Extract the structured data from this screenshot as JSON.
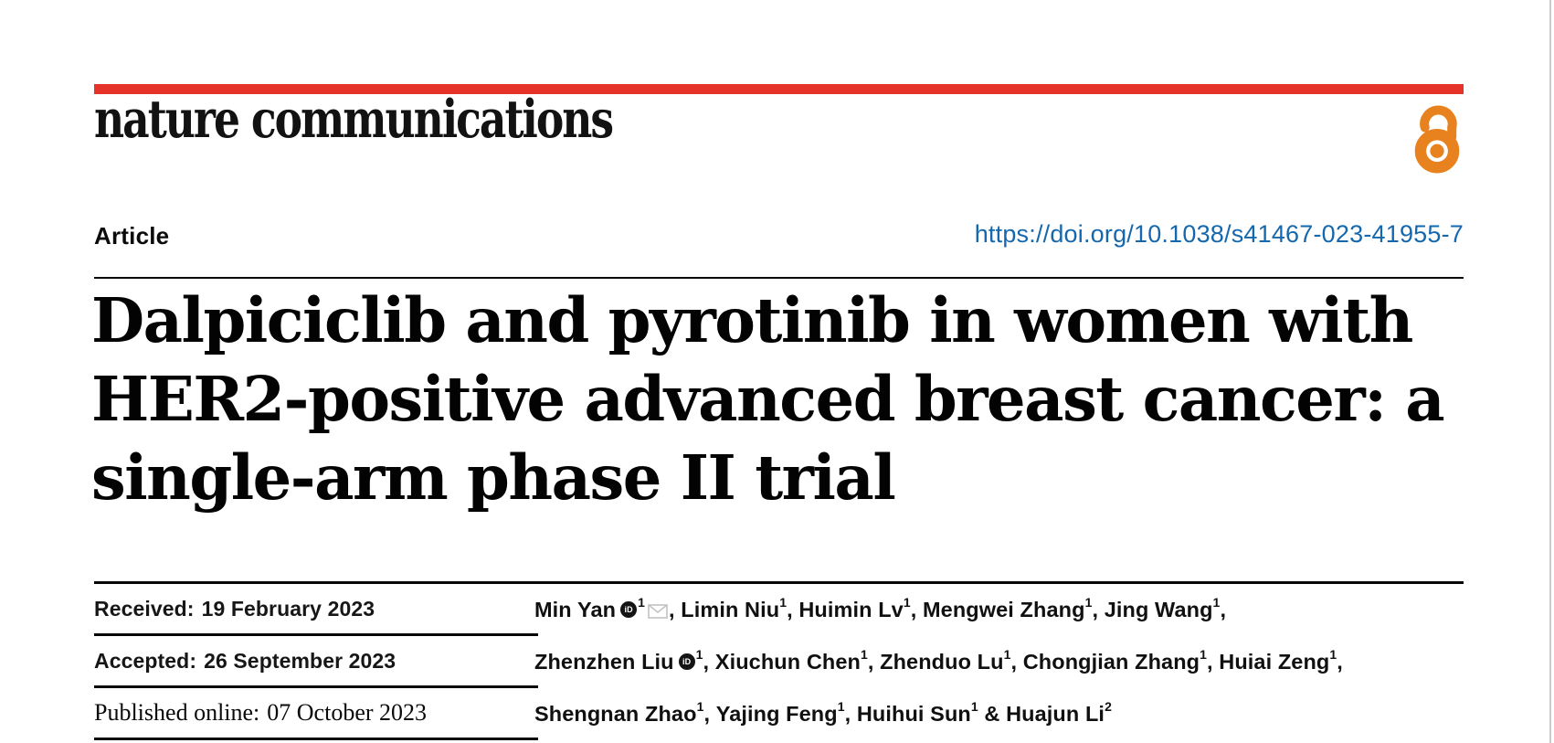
{
  "page": {
    "background_color": "#ffffff",
    "right_edge_color": "#cbcbcb"
  },
  "masthead": {
    "brand": "nature communications",
    "bar_color": "#e6332a",
    "open_access_icon": "open-access-padlock-icon",
    "open_access_color": "#e8821e"
  },
  "article_header": {
    "kicker": "Article",
    "doi": "https://doi.org/10.1038/s41467-023-41955-7",
    "doi_color": "#1568ad",
    "title_lines": [
      "Dalpiciclib and pyrotinib in women with",
      "HER2-positive advanced breast cancer: a",
      "single-arm phase II trial"
    ]
  },
  "history": {
    "rows": [
      {
        "label": "Received:",
        "value": "19 February 2023",
        "style": "sans"
      },
      {
        "label": "Accepted:",
        "value": "26 September 2023",
        "style": "sans"
      },
      {
        "label": "Published online:",
        "value": "07 October 2023",
        "style": "serif"
      }
    ]
  },
  "authors": {
    "orcid_icon": "orcid-id-icon",
    "envelope_icon": "email-envelope-icon",
    "lines": [
      [
        {
          "name": "Min Yan",
          "orcid": true,
          "sup": "1",
          "envelope": true,
          "tail": ", "
        },
        {
          "name": "Limin Niu",
          "sup": "1",
          "tail": ", "
        },
        {
          "name": "Huimin Lv",
          "sup": "1",
          "tail": ", "
        },
        {
          "name": "Mengwei Zhang",
          "sup": "1",
          "tail": ", "
        },
        {
          "name": "Jing Wang",
          "sup": "1",
          "tail": ","
        }
      ],
      [
        {
          "name": "Zhenzhen Liu",
          "orcid": true,
          "sup": "1",
          "tail": ", "
        },
        {
          "name": "Xiuchun Chen",
          "sup": "1",
          "tail": ", "
        },
        {
          "name": "Zhenduo Lu",
          "sup": "1",
          "tail": ", "
        },
        {
          "name": "Chongjian Zhang",
          "sup": "1",
          "tail": ", "
        },
        {
          "name": "Huiai Zeng",
          "sup": "1",
          "tail": ","
        }
      ],
      [
        {
          "name": "Shengnan Zhao",
          "sup": "1",
          "tail": ", "
        },
        {
          "name": "Yajing Feng",
          "sup": "1",
          "tail": ", "
        },
        {
          "name": "Huihui Sun",
          "sup": "1",
          "tail": " & "
        },
        {
          "name": "Huajun Li",
          "sup": "2",
          "tail": ""
        }
      ]
    ]
  }
}
